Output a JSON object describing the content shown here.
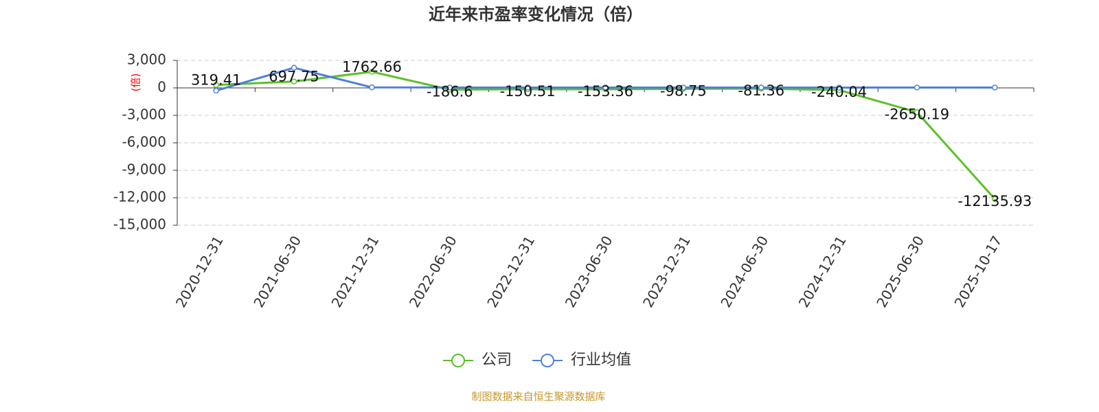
{
  "chart_data": {
    "type": "line",
    "title": "近年来市盈率变化情况（倍）",
    "y_label": "(倍)",
    "source": "制图数据来自恒生聚源数据库",
    "categories": [
      "2020-12-31",
      "2021-06-30",
      "2021-12-31",
      "2022-06-30",
      "2022-12-31",
      "2023-06-30",
      "2023-12-31",
      "2024-06-30",
      "2024-12-31",
      "2025-06-30",
      "2025-10-17"
    ],
    "series": [
      {
        "name": "公司",
        "color": "#5cc127",
        "values": [
          319.41,
          697.75,
          1762.66,
          -186.6,
          -150.51,
          -153.36,
          -98.75,
          -81.36,
          -240.04,
          -2650.19,
          -12135.93
        ]
      },
      {
        "name": "行业均值",
        "color": "#4f80d9",
        "values": [
          -300,
          2200,
          60,
          40,
          40,
          40,
          40,
          40,
          30,
          40,
          40
        ]
      }
    ],
    "ylim": [
      -15000,
      3000
    ],
    "yticks": [
      {
        "value": -15000,
        "label": "-15,000"
      },
      {
        "value": -12000,
        "label": "-12,000"
      },
      {
        "value": -9000,
        "label": "-9,000"
      },
      {
        "value": -6000,
        "label": "-6,000"
      },
      {
        "value": -3000,
        "label": "-3,000"
      },
      0,
      {
        "value": 3000,
        "label": "3,000"
      }
    ],
    "grid": true
  }
}
